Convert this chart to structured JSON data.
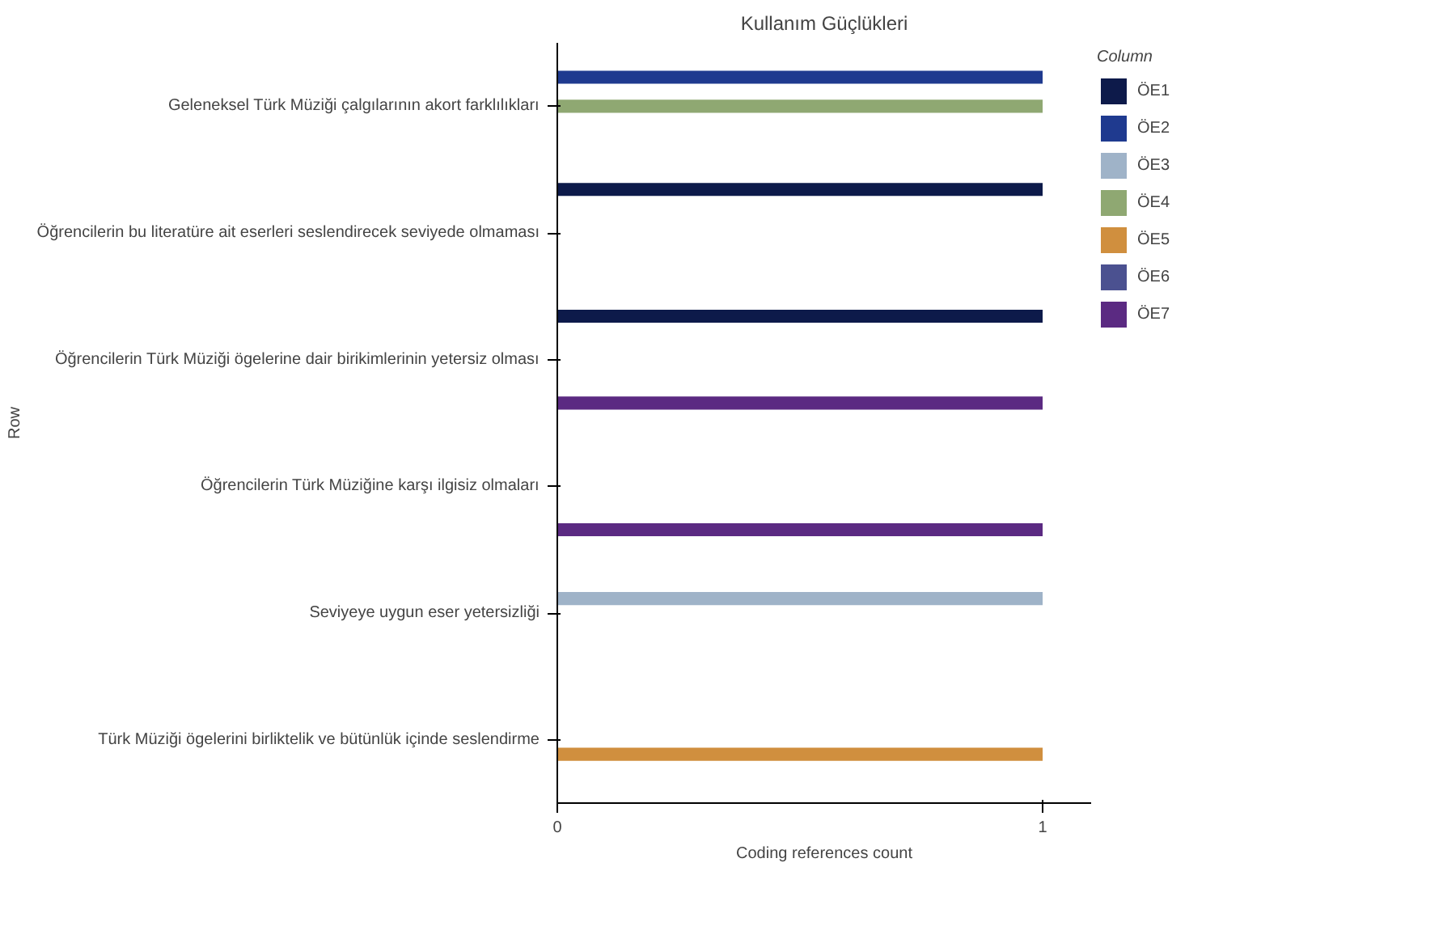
{
  "chart_data": {
    "type": "bar",
    "title": "Kullanım Güçlükleri",
    "orientation": "horizontal",
    "xlabel": "Coding references count",
    "ylabel": "Row",
    "legend_title": "Column",
    "categories": [
      "Geleneksel Türk Müziği çalgılarının akort farklılıkları",
      "Öğrencilerin bu literatüre ait eserleri seslendirecek seviyede olmaması",
      "Öğrencilerin Türk Müziği ögelerine dair birikimlerinin yetersiz olması",
      "Öğrencilerin Türk Müziğine karşı ilgisiz olmaları",
      "Seviyeye uygun eser yetersizliği",
      "Türk Müziği ögelerini birliktelik ve bütünlük içinde seslendirme"
    ],
    "series": [
      {
        "name": "ÖE1",
        "color": "#0d1a4a",
        "values": [
          0,
          1,
          1,
          0,
          0,
          0
        ]
      },
      {
        "name": "ÖE2",
        "color": "#1f3a8f",
        "values": [
          1,
          0,
          0,
          0,
          0,
          0
        ]
      },
      {
        "name": "ÖE3",
        "color": "#9fb3c8",
        "values": [
          0,
          0,
          0,
          0,
          1,
          0
        ]
      },
      {
        "name": "ÖE4",
        "color": "#8fa872",
        "values": [
          1,
          0,
          0,
          0,
          0,
          0
        ]
      },
      {
        "name": "ÖE5",
        "color": "#d08f3e",
        "values": [
          0,
          0,
          0,
          0,
          0,
          1
        ]
      },
      {
        "name": "ÖE6",
        "color": "#4b5190",
        "values": [
          0,
          0,
          0,
          0,
          0,
          0
        ]
      },
      {
        "name": "ÖE7",
        "color": "#5b2a82",
        "values": [
          0,
          0,
          1,
          1,
          0,
          0
        ]
      }
    ],
    "xlim": [
      0,
      1.1
    ],
    "xticks": [
      0,
      1
    ],
    "grid": false,
    "legend": "right"
  }
}
